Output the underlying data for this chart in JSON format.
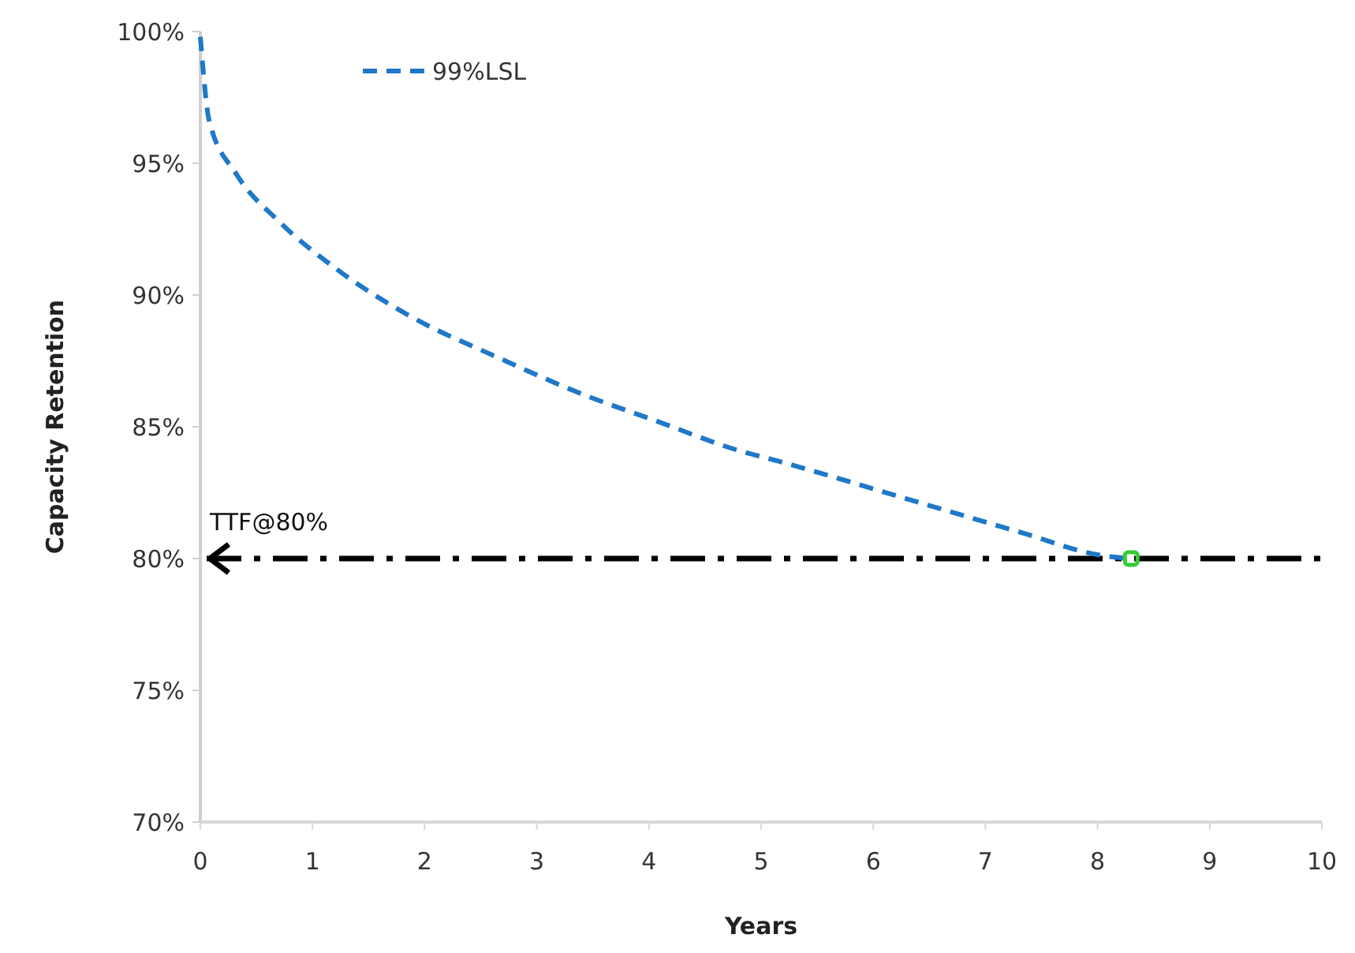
{
  "chart_data": {
    "type": "line",
    "xlabel": "Years",
    "ylabel": "Capacity Retention",
    "xlim": [
      0,
      10
    ],
    "xticks": [
      0,
      1,
      2,
      3,
      4,
      5,
      6,
      7,
      8,
      9,
      10
    ],
    "ylim": [
      70,
      100
    ],
    "yticks": [
      {
        "value": 70,
        "label": "70%"
      },
      {
        "value": 75,
        "label": "75%"
      },
      {
        "value": 80,
        "label": "80%"
      },
      {
        "value": 85,
        "label": "85%"
      },
      {
        "value": 90,
        "label": "90%"
      },
      {
        "value": 95,
        "label": "95%"
      },
      {
        "value": 100,
        "label": "100%"
      }
    ],
    "grid": false,
    "legend": "top left",
    "line_style": "dashed",
    "marker": "none",
    "series": [
      {
        "name": "99%LSL",
        "color": "#1f78c8",
        "x": [
          0,
          0.08,
          0.32,
          0.7,
          1.21,
          1.87,
          2.67,
          3.37,
          4.08,
          4.8,
          5.15,
          6.43,
          7.31,
          8.06,
          8.3
        ],
        "values": [
          99.8,
          96.6,
          94.6,
          92.8,
          91.0,
          89.2,
          87.6,
          86.3,
          85.2,
          84.1,
          83.7,
          82.1,
          81.0,
          80.1,
          80
        ]
      },
      {
        "type": "scatter",
        "marker": "square",
        "color": "#33cc33",
        "x": [
          8.3
        ],
        "values": [
          80
        ]
      }
    ],
    "ref_lines": [
      {
        "axis": "y",
        "value": 80,
        "label": "TTF@80%",
        "color": "#000000",
        "line_style": "dashdot"
      }
    ]
  }
}
